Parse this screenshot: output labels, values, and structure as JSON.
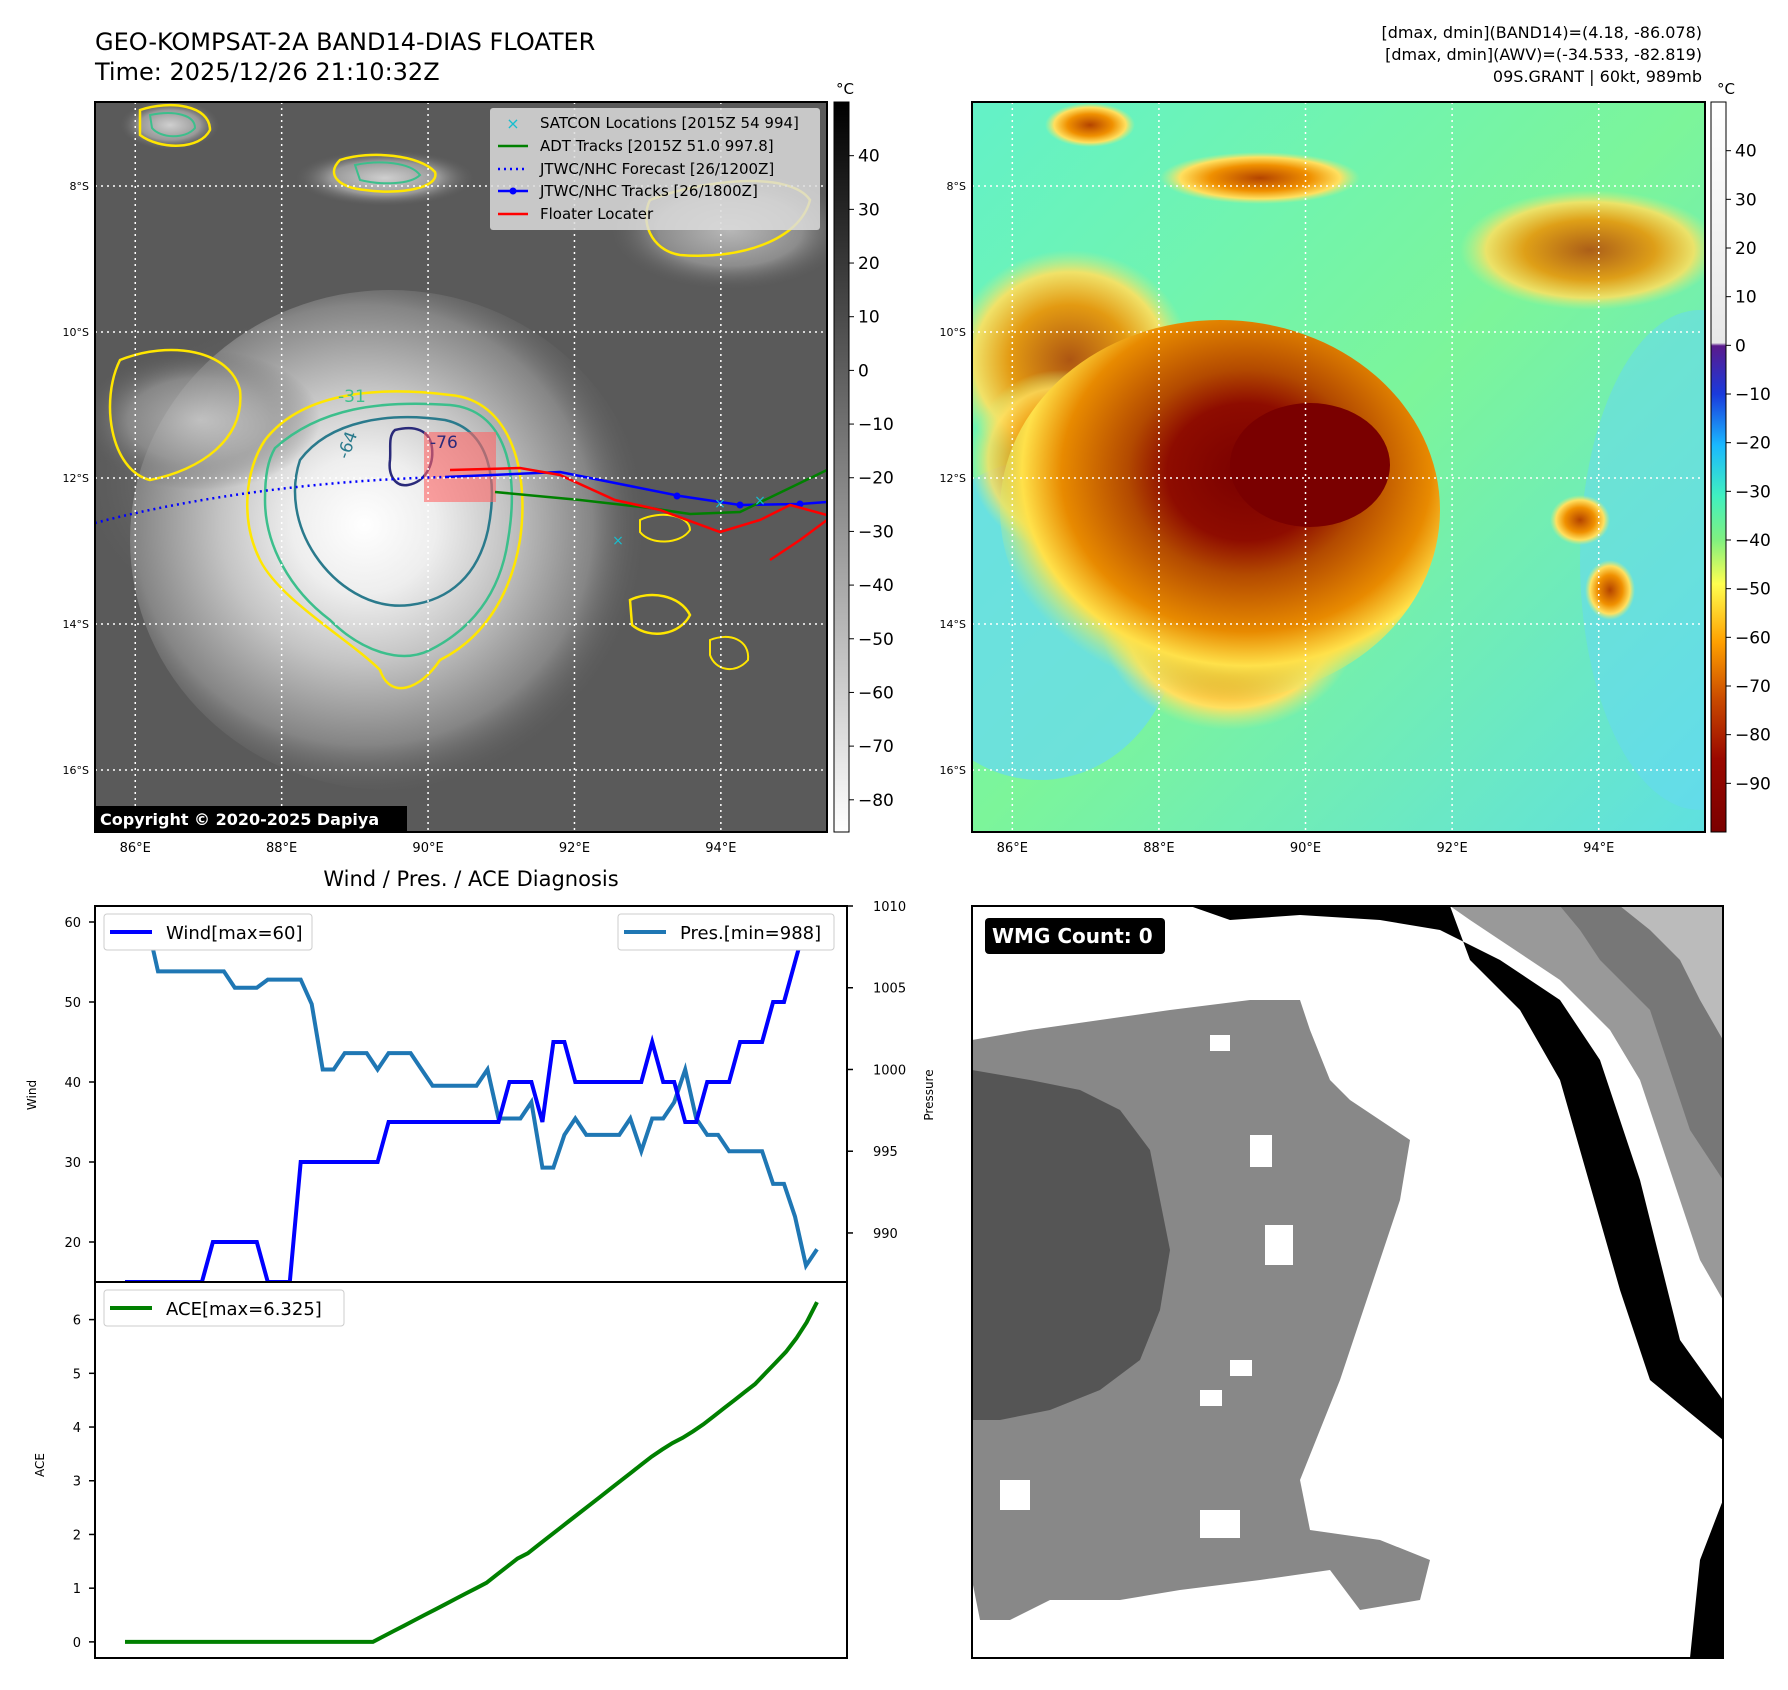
{
  "header": {
    "title_line1": "GEO-KOMPSAT-2A BAND14-DIAS FLOATER",
    "title_line2": "Time: 2025/12/26 21:10:32Z",
    "stats_line1": "[dmax, dmin](BAND14)=(4.18, -86.078)",
    "stats_line2": "[dmax, dmin](AWV)=(-34.533, -82.819)",
    "stats_line3": "09S.GRANT | 60kt, 989mb"
  },
  "copyright": "Copyright © 2020-2025 Dapiya",
  "colors": {
    "wind": "#0000ff",
    "pressure": "#1f77b4",
    "ace": "#008000",
    "satcon": "#17becf",
    "adt": "#008000",
    "jtwc_forecast": "#0000ff",
    "jtwc_track": "#0000ff",
    "floater": "#ff0000",
    "contour_outer": "#ffe600",
    "contour_mid": "#3cbf8c",
    "contour_inner": "#2a7a8c",
    "contour_core": "#2a2a7a"
  },
  "map": {
    "lon_ticks": [
      "86°E",
      "88°E",
      "90°E",
      "92°E",
      "94°E"
    ],
    "lat_ticks": [
      "8°S",
      "10°S",
      "12°S",
      "14°S",
      "16°S"
    ],
    "lon_values": [
      86,
      88,
      90,
      92,
      94
    ],
    "lat_values": [
      -8,
      -10,
      -12,
      -14,
      -16
    ],
    "lon_range": [
      85.45,
      95.45
    ],
    "lat_range": [
      -16.85,
      -6.85
    ]
  },
  "legend": [
    {
      "label": "SATCON Locations [2015Z 54 994]",
      "style": "x"
    },
    {
      "label": "ADT Tracks [2015Z 51.0 997.8]",
      "style": "line"
    },
    {
      "label": "JTWC/NHC Forecast [26/1200Z]",
      "style": "dotted"
    },
    {
      "label": "JTWC/NHC Tracks [26/1800Z]",
      "style": "dot-line"
    },
    {
      "label": "Floater Locater",
      "style": "line"
    }
  ],
  "contour_labels": [
    "-31",
    "-64",
    "-76"
  ],
  "colorbar_gray": {
    "unit": "°C",
    "ticks": [
      40,
      30,
      20,
      10,
      0,
      -10,
      -20,
      -30,
      -40,
      -50,
      -60,
      -70,
      -80
    ],
    "range": [
      -86,
      50
    ]
  },
  "colorbar_color": {
    "unit": "°C",
    "ticks": [
      40,
      30,
      20,
      10,
      0,
      -10,
      -20,
      -30,
      -40,
      -50,
      -60,
      -70,
      -80,
      -90
    ],
    "range": [
      -100,
      50
    ]
  },
  "chart_data": [
    {
      "type": "line",
      "title": "Wind / Pres. / ACE Diagnosis",
      "ylabel": "Wind",
      "ylabel_right": "Pressure",
      "ylim": [
        15,
        62
      ],
      "ylim_right": [
        987,
        1010
      ],
      "yticks": [
        20,
        30,
        40,
        50,
        60
      ],
      "yticks_right": [
        990,
        995,
        1000,
        1005,
        1010
      ],
      "series": [
        {
          "name": "Wind[max=60]",
          "axis": "left",
          "values": [
            15,
            15,
            15,
            15,
            15,
            15,
            15,
            15,
            20,
            20,
            20,
            20,
            20,
            15,
            15,
            15,
            30,
            30,
            30,
            30,
            30,
            30,
            30,
            30,
            35,
            35,
            35,
            35,
            35,
            35,
            35,
            35,
            35,
            35,
            35,
            40,
            40,
            40,
            35,
            45,
            45,
            40,
            40,
            40,
            40,
            40,
            40,
            40,
            45,
            40,
            40,
            35,
            35,
            40,
            40,
            40,
            45,
            45,
            45,
            50,
            50,
            55,
            60,
            60
          ]
        },
        {
          "name": "Pres.[min=988]",
          "axis": "right",
          "values": [
            1009,
            1009,
            1009,
            1006,
            1006,
            1006,
            1006,
            1006,
            1006,
            1006,
            1005,
            1005,
            1005,
            1005.5,
            1005.5,
            1005.5,
            1005.5,
            1004,
            1000,
            1000,
            1001,
            1001,
            1001,
            1000,
            1001,
            1001,
            1001,
            1000,
            999,
            999,
            999,
            999,
            999,
            1000,
            997,
            997,
            997,
            998,
            994,
            994,
            996,
            997,
            996,
            996,
            996,
            996,
            997,
            995,
            997,
            997,
            998,
            1000,
            997,
            996,
            996,
            995,
            995,
            995,
            995,
            993,
            993,
            991,
            988,
            989
          ]
        }
      ]
    },
    {
      "type": "line",
      "ylabel": "ACE",
      "ylim": [
        -0.3,
        6.7
      ],
      "yticks": [
        0,
        1,
        2,
        3,
        4,
        5,
        6
      ],
      "series": [
        {
          "name": "ACE[max=6.325]",
          "values": [
            0,
            0,
            0,
            0,
            0,
            0,
            0,
            0,
            0,
            0,
            0,
            0,
            0,
            0,
            0,
            0,
            0,
            0,
            0,
            0,
            0,
            0,
            0,
            0,
            0,
            0.1,
            0.2,
            0.3,
            0.4,
            0.5,
            0.6,
            0.7,
            0.8,
            0.9,
            1.0,
            1.1,
            1.25,
            1.4,
            1.55,
            1.65,
            1.8,
            1.95,
            2.1,
            2.25,
            2.4,
            2.55,
            2.7,
            2.85,
            3.0,
            3.15,
            3.3,
            3.45,
            3.58,
            3.7,
            3.8,
            3.92,
            4.05,
            4.2,
            4.35,
            4.5,
            4.65,
            4.8,
            5.0,
            5.2,
            5.4,
            5.65,
            5.95,
            6.325
          ]
        }
      ]
    }
  ],
  "wmg": {
    "label": "WMG Count: 0"
  }
}
